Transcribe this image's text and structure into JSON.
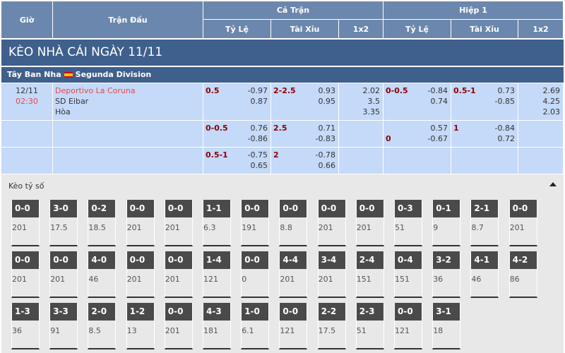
{
  "header": {
    "time": "Giờ",
    "match": "Trận Đấu",
    "full_time": "Cả Trận",
    "half1": "Hiệp 1",
    "handicap": "Tỷ Lệ",
    "over_under": "Tài Xỉu",
    "x12": "1x2"
  },
  "title": "KÈO NHÀ CÁI NGÀY 11/11",
  "league": {
    "country": "Tây Ban Nha",
    "name": "Segunda Division",
    "flag_icon": "spain-flag-icon"
  },
  "match": {
    "date": "12/11",
    "time": "02:30",
    "home": "Deportivo La Coruna",
    "away": "SD Eibar",
    "draw": "Hòa",
    "home_color": "#e8474a"
  },
  "rows": [
    [
      {
        "line": "0.5",
        "values": [
          "-0.97",
          "0.87"
        ]
      },
      {
        "line": "2-2.5",
        "values": [
          "0.93",
          "0.95"
        ]
      },
      {
        "line": "",
        "values": [
          "2.02",
          "3.5",
          "3.35"
        ]
      },
      {
        "line": "0-0.5",
        "values": [
          "-0.84",
          "0.74"
        ]
      },
      {
        "line": "0.5-1",
        "values": [
          "0.73",
          "-0.85"
        ]
      },
      {
        "line": "",
        "values": [
          "2.69",
          "4.25",
          "2.03"
        ]
      }
    ],
    [
      {
        "line": "0-0.5",
        "values": [
          "0.76",
          "-0.86"
        ]
      },
      {
        "line": "2.5",
        "values": [
          "0.71",
          "-0.83"
        ]
      },
      {
        "line": "",
        "values": []
      },
      {
        "line": "0",
        "line_second": true,
        "values": [
          "0.57",
          "-0.67"
        ]
      },
      {
        "line": "1",
        "values": [
          "-0.84",
          "0.72"
        ]
      },
      {
        "line": "",
        "values": []
      }
    ],
    [
      {
        "line": "0.5-1",
        "values": [
          "-0.75",
          "0.65"
        ]
      },
      {
        "line": "2",
        "values": [
          "-0.78",
          "0.66"
        ]
      },
      {
        "line": "",
        "values": []
      },
      {
        "line": "",
        "values": []
      },
      {
        "line": "",
        "values": []
      },
      {
        "line": "",
        "values": []
      }
    ]
  ],
  "correct_score": {
    "title": "Kèo tỷ số",
    "collapse_icon": "caret-up-icon",
    "cards": [
      {
        "score": "0-0",
        "odds": "201"
      },
      {
        "score": "3-0",
        "odds": "17.5"
      },
      {
        "score": "0-2",
        "odds": "18.5"
      },
      {
        "score": "0-0",
        "odds": "201"
      },
      {
        "score": "0-0",
        "odds": "201"
      },
      {
        "score": "1-1",
        "odds": "6.3"
      },
      {
        "score": "0-0",
        "odds": "191"
      },
      {
        "score": "0-0",
        "odds": "8.8"
      },
      {
        "score": "0-0",
        "odds": "201"
      },
      {
        "score": "0-0",
        "odds": "201"
      },
      {
        "score": "0-3",
        "odds": "51"
      },
      {
        "score": "0-1",
        "odds": "9"
      },
      {
        "score": "2-1",
        "odds": "8.7"
      },
      {
        "score": "0-0",
        "odds": "201"
      },
      {
        "score": "0-0",
        "odds": "201"
      },
      {
        "score": "0-0",
        "odds": "201"
      },
      {
        "score": "4-0",
        "odds": "46"
      },
      {
        "score": "0-0",
        "odds": "201"
      },
      {
        "score": "0-0",
        "odds": "201"
      },
      {
        "score": "1-4",
        "odds": "121"
      },
      {
        "score": "0-0",
        "odds": "0"
      },
      {
        "score": "4-4",
        "odds": "201"
      },
      {
        "score": "3-4",
        "odds": "201"
      },
      {
        "score": "2-4",
        "odds": "151"
      },
      {
        "score": "0-4",
        "odds": "151"
      },
      {
        "score": "3-2",
        "odds": "36"
      },
      {
        "score": "4-1",
        "odds": "46"
      },
      {
        "score": "4-2",
        "odds": "86"
      },
      {
        "score": "1-3",
        "odds": "36"
      },
      {
        "score": "3-3",
        "odds": "91"
      },
      {
        "score": "2-0",
        "odds": "8.5"
      },
      {
        "score": "1-2",
        "odds": "13"
      },
      {
        "score": "0-0",
        "odds": "201"
      },
      {
        "score": "4-3",
        "odds": "181"
      },
      {
        "score": "1-0",
        "odds": "6.1"
      },
      {
        "score": "0-0",
        "odds": "121"
      },
      {
        "score": "2-2",
        "odds": "17.5"
      },
      {
        "score": "2-3",
        "odds": "51"
      },
      {
        "score": "0-0",
        "odds": "121"
      },
      {
        "score": "3-1",
        "odds": "18"
      }
    ]
  }
}
